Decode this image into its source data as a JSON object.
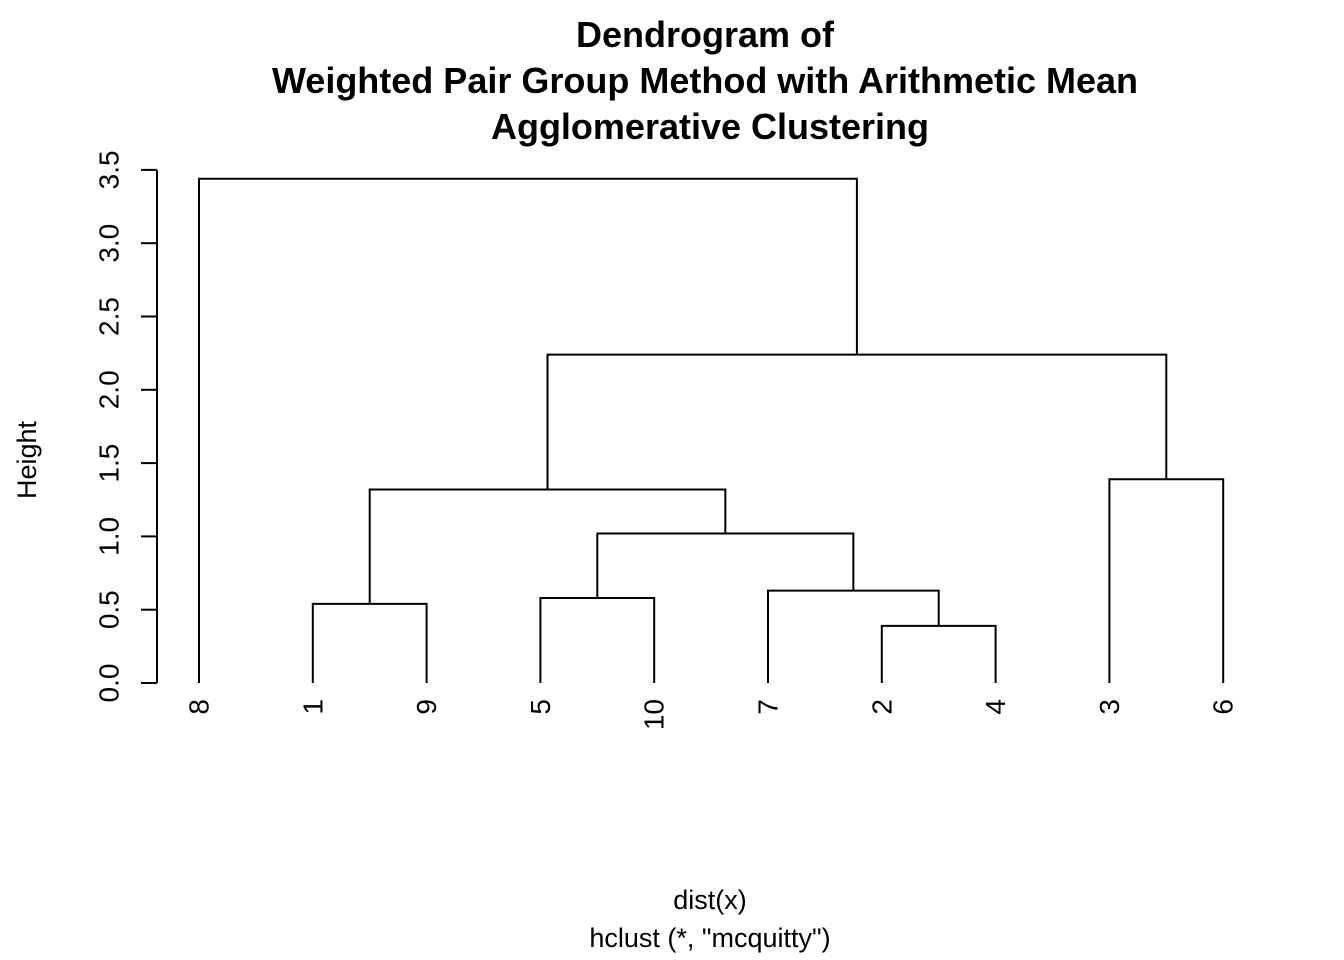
{
  "chart_data": {
    "type": "dendrogram",
    "title": [
      "Dendrogram of",
      "Weighted Pair Group Method with Arithmetic Mean",
      "Agglomerative Clustering"
    ],
    "ylabel": "Height",
    "xlabel": "dist(x)",
    "sub": "hclust (*, \"mcquitty\")",
    "ylim": [
      0,
      3.5
    ],
    "yticks": [
      0.0,
      0.5,
      1.0,
      1.5,
      2.0,
      2.5,
      3.0,
      3.5
    ],
    "ytick_labels": [
      "0.0",
      "0.5",
      "1.0",
      "1.5",
      "2.0",
      "2.5",
      "3.0",
      "3.5"
    ],
    "leaf_order": [
      "8",
      "1",
      "9",
      "5",
      "10",
      "7",
      "2",
      "4",
      "3",
      "6"
    ],
    "merges": [
      {
        "left": "2",
        "right": "4",
        "height": 0.39
      },
      {
        "left": "1",
        "right": "9",
        "height": 0.54
      },
      {
        "left": "5",
        "right": "10",
        "height": 0.58
      },
      {
        "left": "7",
        "right": "2+4",
        "height": 0.63
      },
      {
        "left": "5+10",
        "right": "7+2+4",
        "height": 1.02
      },
      {
        "left": "1+9",
        "right": "5+10+7+2+4",
        "height": 1.32
      },
      {
        "left": "3",
        "right": "6",
        "height": 1.39
      },
      {
        "left": "1+9+5+10+7+2+4",
        "right": "3+6",
        "height": 2.24
      },
      {
        "left": "8",
        "right": "1+9+5+10+7+2+4+3+6",
        "height": 3.44
      }
    ]
  }
}
